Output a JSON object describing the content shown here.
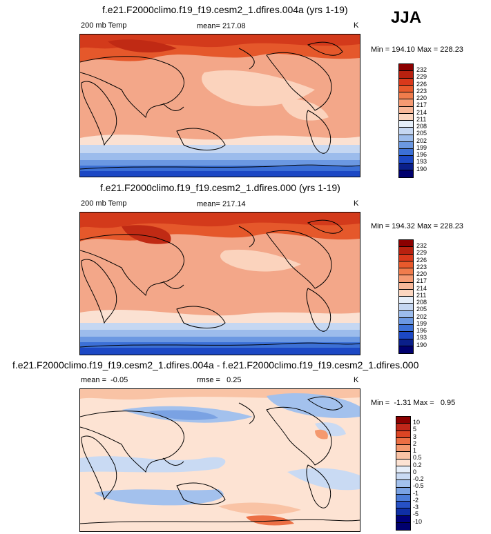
{
  "season": "JJA",
  "panels": [
    {
      "title": "f.e21.F2000climo.f19_f19.cesm2_1.dfires.004a (yrs 1-19)",
      "left": "200 mb Temp",
      "center": "mean= 217.08",
      "right": "K",
      "stats": "Min = 194.10 Max = 228.23",
      "ticks": [
        "232",
        "229",
        "226",
        "223",
        "220",
        "217",
        "214",
        "211",
        "208",
        "205",
        "202",
        "199",
        "196",
        "193",
        "190"
      ]
    },
    {
      "title": "f.e21.F2000climo.f19_f19.cesm2_1.dfires.000 (yrs 1-19)",
      "left": "200 mb Temp",
      "center": "mean= 217.14",
      "right": "K",
      "stats": "Min = 194.32 Max = 228.23",
      "ticks": [
        "232",
        "229",
        "226",
        "223",
        "220",
        "217",
        "214",
        "211",
        "208",
        "205",
        "202",
        "199",
        "196",
        "193",
        "190"
      ]
    },
    {
      "title": "f.e21.F2000climo.f19_f19.cesm2_1.dfires.004a - f.e21.F2000climo.f19_f19.cesm2_1.dfires.000",
      "left": "mean =  -0.05",
      "center": "rmse =   0.25",
      "right": "K",
      "stats": "Min =  -1.31 Max =   0.95",
      "ticks": [
        "10",
        "5",
        "3",
        "2",
        "1",
        "0.5",
        "0.2",
        "0",
        "-0.2",
        "-0.5",
        "-1",
        "-2",
        "-3",
        "-5",
        "-10"
      ]
    }
  ],
  "colors": {
    "temp_scale": [
      "#8b0000",
      "#b8210f",
      "#d9391b",
      "#e85a2c",
      "#f07c4c",
      "#f59a72",
      "#f8b899",
      "#fbd6c0",
      "#e5eef9",
      "#c5d7f2",
      "#9cbcec",
      "#6b98e2",
      "#3c70d6",
      "#1c48c4",
      "#0a1f8a",
      "#00006e"
    ],
    "diff_scale": [
      "#8b0000",
      "#c0271a",
      "#dc4524",
      "#ec6f44",
      "#f4996f",
      "#f9c3a5",
      "#fde3d3",
      "#e6eef9",
      "#c9daf3",
      "#a3c1ed",
      "#7aa2e3",
      "#4c7cd8",
      "#2751c6",
      "#0f2fa6",
      "#00007a",
      "#00006e"
    ]
  }
}
